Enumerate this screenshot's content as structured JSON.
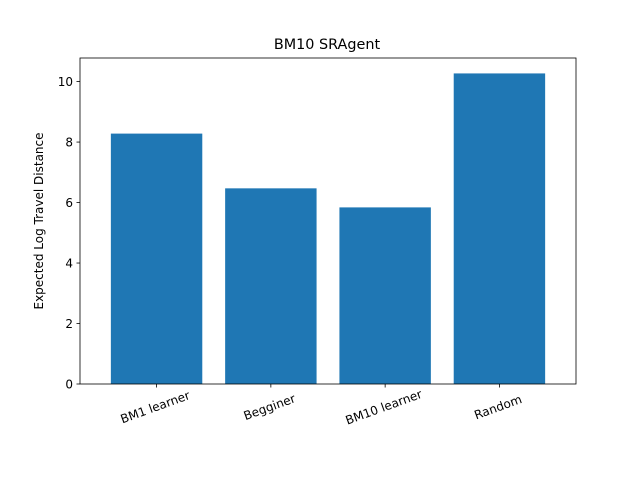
{
  "chart_data": {
    "type": "bar",
    "title": "BM10 SRAgent",
    "xlabel": "",
    "ylabel": "Expected Log Travel Distance",
    "categories": [
      "BM1 learner",
      "Begginer",
      "BM10 learner",
      "Random"
    ],
    "values": [
      8.28,
      6.47,
      5.84,
      10.27
    ],
    "ylim": [
      0,
      10.78
    ],
    "yticks": [
      0,
      2,
      4,
      6,
      8,
      10
    ],
    "bar_color": "#1f77b4",
    "grid": false,
    "legend": "none"
  }
}
